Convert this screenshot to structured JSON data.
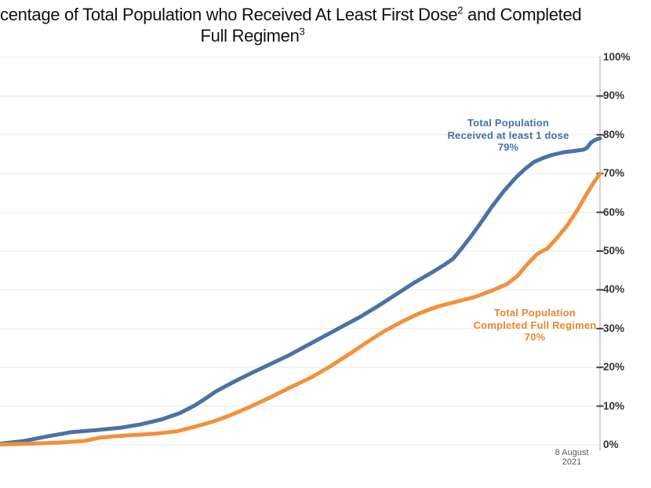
{
  "title": {
    "line1_visible": "centage of Total Population who Received At Least First Dose",
    "footnote1": "2",
    "line1_tail": " and Completed",
    "line2": "Full Regimen",
    "footnote2": "3"
  },
  "footer": {
    "date_label": "8 August 2021"
  },
  "colors": {
    "first_dose_line": "#4A72A4",
    "full_regimen_line": "#F0923C",
    "first_dose_text": "#4273A8",
    "full_regimen_text": "#E8862D",
    "gridline": "#E8E8E8",
    "axis_line": "#D2D2D2",
    "tick_mark": "#3F3F3F",
    "axis_label": "#333333",
    "date_text": "#595959"
  },
  "chart_data": {
    "type": "line",
    "grid": true,
    "y_axis": {
      "side": "right",
      "min": 0,
      "max": 100,
      "tick_step": 10,
      "tick_labels": [
        "0%",
        "10%",
        "20%",
        "30%",
        "40%",
        "50%",
        "60%",
        "70%",
        "80%",
        "90%",
        "100%"
      ]
    },
    "x_axis": {
      "visible_labels": [
        "8 August 2021"
      ]
    },
    "series": [
      {
        "name": "Total Population Received at least 1 dose",
        "final_value_pct": 79,
        "color": "#4A72A4",
        "points": [
          [
            0,
            0.3
          ],
          [
            0.04,
            1.0
          ],
          [
            0.08,
            2.2
          ],
          [
            0.12,
            3.3
          ],
          [
            0.16,
            3.8
          ],
          [
            0.2,
            4.4
          ],
          [
            0.235,
            5.3
          ],
          [
            0.27,
            6.6
          ],
          [
            0.3,
            8.2
          ],
          [
            0.325,
            10.2
          ],
          [
            0.345,
            12.2
          ],
          [
            0.36,
            13.8
          ],
          [
            0.39,
            16.3
          ],
          [
            0.42,
            18.6
          ],
          [
            0.45,
            20.8
          ],
          [
            0.48,
            23.0
          ],
          [
            0.51,
            25.5
          ],
          [
            0.54,
            28.0
          ],
          [
            0.57,
            30.5
          ],
          [
            0.6,
            33.0
          ],
          [
            0.63,
            35.8
          ],
          [
            0.66,
            38.8
          ],
          [
            0.69,
            41.8
          ],
          [
            0.72,
            44.5
          ],
          [
            0.74,
            46.4
          ],
          [
            0.755,
            48.0
          ],
          [
            0.77,
            50.8
          ],
          [
            0.785,
            53.8
          ],
          [
            0.8,
            57.0
          ],
          [
            0.82,
            61.5
          ],
          [
            0.84,
            65.5
          ],
          [
            0.86,
            69.0
          ],
          [
            0.875,
            71.2
          ],
          [
            0.89,
            73.0
          ],
          [
            0.905,
            74.0
          ],
          [
            0.92,
            74.8
          ],
          [
            0.94,
            75.5
          ],
          [
            0.96,
            75.9
          ],
          [
            0.973,
            76.2
          ],
          [
            0.978,
            76.6
          ],
          [
            0.985,
            78.0
          ],
          [
            0.992,
            78.7
          ],
          [
            1,
            79.1
          ]
        ]
      },
      {
        "name": "Total Population Completed Full Regimen",
        "final_value_pct": 70,
        "color": "#F0923C",
        "points": [
          [
            0,
            0.1
          ],
          [
            0.05,
            0.3
          ],
          [
            0.1,
            0.6
          ],
          [
            0.14,
            1.0
          ],
          [
            0.165,
            1.8
          ],
          [
            0.19,
            2.2
          ],
          [
            0.22,
            2.5
          ],
          [
            0.26,
            2.9
          ],
          [
            0.295,
            3.5
          ],
          [
            0.325,
            4.7
          ],
          [
            0.355,
            6.0
          ],
          [
            0.385,
            7.7
          ],
          [
            0.415,
            9.7
          ],
          [
            0.45,
            12.2
          ],
          [
            0.485,
            14.9
          ],
          [
            0.52,
            17.5
          ],
          [
            0.55,
            20.2
          ],
          [
            0.58,
            23.2
          ],
          [
            0.61,
            26.3
          ],
          [
            0.64,
            29.3
          ],
          [
            0.67,
            31.8
          ],
          [
            0.7,
            34.0
          ],
          [
            0.73,
            35.7
          ],
          [
            0.76,
            36.9
          ],
          [
            0.79,
            38.1
          ],
          [
            0.82,
            39.8
          ],
          [
            0.845,
            41.5
          ],
          [
            0.862,
            43.5
          ],
          [
            0.88,
            46.8
          ],
          [
            0.895,
            49.2
          ],
          [
            0.906,
            50.2
          ],
          [
            0.912,
            50.6
          ],
          [
            0.925,
            52.8
          ],
          [
            0.945,
            56.5
          ],
          [
            0.962,
            60.5
          ],
          [
            0.975,
            64.0
          ],
          [
            0.988,
            67.3
          ],
          [
            1,
            70.0
          ]
        ]
      }
    ],
    "annotations": [
      {
        "series": "first_dose",
        "lines": [
          "Total Population",
          "Received at least 1 dose",
          "79%"
        ],
        "color": "#4273A8"
      },
      {
        "series": "full_regimen",
        "lines": [
          "Total Population",
          "Completed Full Regimen",
          "70%"
        ],
        "color": "#E8862D"
      }
    ]
  }
}
